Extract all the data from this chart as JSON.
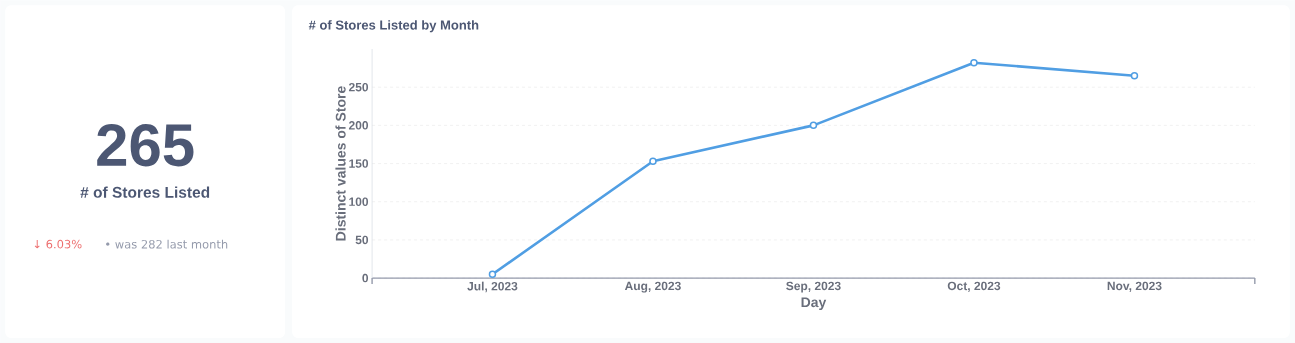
{
  "chart_data": [
    {
      "type": "other",
      "title": "# of Stores Listed",
      "values": [
        265
      ],
      "data_labels": true,
      "annotations": [
        "↓ 6.03%",
        "• was 282 last month"
      ]
    },
    {
      "type": "line",
      "title": "# of Stores Listed by Month",
      "xlabel": "Day",
      "ylabel": "Distinct values of Store",
      "categories": [
        "Jul, 2023",
        "Aug, 2023",
        "Sep, 2023",
        "Oct, 2023",
        "Nov, 2023"
      ],
      "series": [
        {
          "color": "#509ee3",
          "values": [
            5,
            153,
            200,
            282,
            265
          ]
        }
      ],
      "ylim": [
        0,
        300
      ],
      "yticks": [
        0,
        50,
        100,
        150,
        200,
        250
      ],
      "grid": "y",
      "marker": "circle",
      "line_style": "solid"
    }
  ]
}
